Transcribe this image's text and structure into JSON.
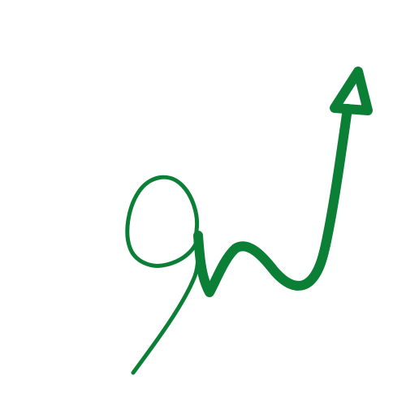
{
  "image": {
    "background_color": "#ffffff",
    "stroke_color": "#0a7f35",
    "icon": "handwritten-upward-arrow-icon"
  }
}
